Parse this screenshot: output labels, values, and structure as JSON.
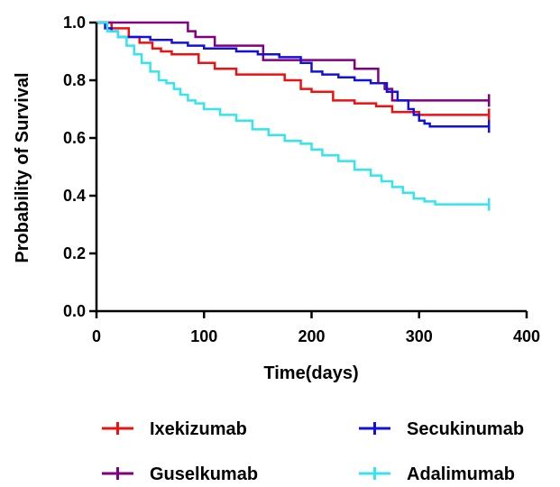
{
  "chart_data": {
    "type": "line",
    "subtype": "kaplan-meier-step",
    "xlabel": "Time(days)",
    "ylabel": "Probability of Survival",
    "xlim": [
      0,
      400
    ],
    "ylim": [
      0,
      1.0
    ],
    "xticks": [
      "0",
      "100",
      "200",
      "300",
      "400"
    ],
    "yticks": [
      "0.0",
      "0.2",
      "0.4",
      "0.6",
      "0.8",
      "1.0"
    ],
    "grid": false,
    "legend_position": "bottom",
    "series": [
      {
        "name": "Ixekizumab",
        "color": "#ee1111",
        "x": [
          0,
          14,
          30,
          40,
          52,
          60,
          70,
          95,
          110,
          130,
          175,
          190,
          200,
          220,
          240,
          260,
          275,
          300,
          365
        ],
        "y": [
          1.0,
          0.98,
          0.95,
          0.93,
          0.91,
          0.9,
          0.89,
          0.86,
          0.84,
          0.82,
          0.8,
          0.77,
          0.76,
          0.73,
          0.72,
          0.71,
          0.69,
          0.68,
          0.68
        ],
        "censor_x": [
          365
        ]
      },
      {
        "name": "Guselkumab",
        "color": "#800080",
        "x": [
          0,
          85,
          92,
          110,
          155,
          200,
          240,
          262,
          268,
          275,
          365
        ],
        "y": [
          1.0,
          0.97,
          0.95,
          0.92,
          0.87,
          0.87,
          0.84,
          0.79,
          0.77,
          0.73,
          0.73
        ],
        "censor_x": [
          365
        ]
      },
      {
        "name": "Secukinumab",
        "color": "#1111dd",
        "x": [
          0,
          8,
          14,
          20,
          50,
          70,
          85,
          100,
          130,
          150,
          170,
          190,
          200,
          210,
          225,
          240,
          255,
          270,
          280,
          290,
          295,
          300,
          305,
          310,
          365
        ],
        "y": [
          1.0,
          0.98,
          0.97,
          0.95,
          0.94,
          0.93,
          0.92,
          0.91,
          0.9,
          0.89,
          0.88,
          0.86,
          0.83,
          0.82,
          0.81,
          0.8,
          0.79,
          0.76,
          0.73,
          0.7,
          0.68,
          0.66,
          0.65,
          0.64,
          0.64
        ],
        "censor_x": [
          365
        ]
      },
      {
        "name": "Adalimumab",
        "color": "#33e5ee",
        "x": [
          0,
          10,
          20,
          28,
          35,
          42,
          50,
          58,
          65,
          72,
          78,
          85,
          92,
          100,
          115,
          130,
          145,
          160,
          175,
          190,
          200,
          210,
          225,
          240,
          255,
          265,
          275,
          285,
          295,
          305,
          315,
          365
        ],
        "y": [
          1.0,
          0.97,
          0.95,
          0.92,
          0.89,
          0.86,
          0.83,
          0.8,
          0.79,
          0.77,
          0.75,
          0.73,
          0.72,
          0.7,
          0.68,
          0.66,
          0.63,
          0.61,
          0.59,
          0.58,
          0.56,
          0.54,
          0.52,
          0.49,
          0.47,
          0.45,
          0.43,
          0.41,
          0.39,
          0.38,
          0.37,
          0.37
        ],
        "censor_x": [
          365
        ]
      }
    ]
  }
}
